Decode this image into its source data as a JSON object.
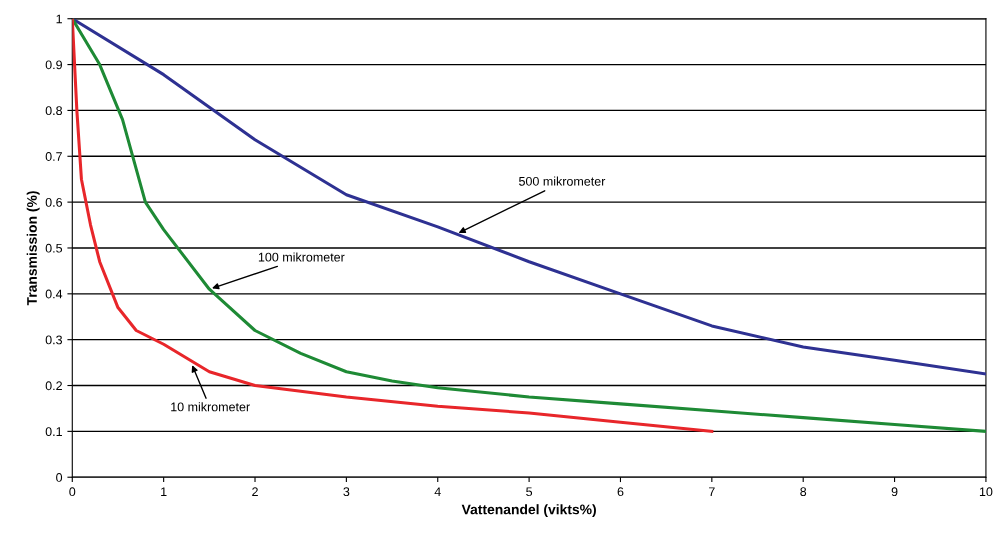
{
  "chart_data": {
    "type": "line",
    "xlabel": "Vattenandel (vikts%)",
    "ylabel": "Transmission (%)",
    "xlim": [
      0,
      10
    ],
    "ylim": [
      0,
      1
    ],
    "xticks": [
      0,
      1,
      2,
      3,
      4,
      5,
      6,
      7,
      8,
      9,
      10
    ],
    "yticks": [
      0,
      0.1,
      0.2,
      0.3,
      0.4,
      0.5,
      0.6,
      0.7,
      0.8,
      0.9,
      1
    ],
    "grid": "y",
    "marker": "none",
    "line_style": "solid",
    "series": [
      {
        "color": "#2e3192",
        "x": [
          0,
          1,
          2,
          3,
          4,
          5,
          6,
          7,
          8,
          9,
          10
        ],
        "values": [
          1,
          0.878,
          0.736,
          0.616,
          0.546,
          0.47,
          0.4,
          0.33,
          0.284,
          0.255,
          0.225
        ]
      },
      {
        "color": "#1e8a35",
        "x": [
          0,
          0.3,
          0.55,
          0.8,
          1,
          1.5,
          2,
          2.5,
          3,
          3.5,
          4,
          5,
          6,
          7,
          8,
          9,
          10
        ],
        "values": [
          1,
          0.9,
          0.78,
          0.6,
          0.54,
          0.41,
          0.32,
          0.27,
          0.23,
          0.21,
          0.195,
          0.175,
          0.16,
          0.145,
          0.13,
          0.115,
          0.1
        ]
      },
      {
        "color": "#e8262a",
        "x": [
          0,
          0.05,
          0.1,
          0.2,
          0.3,
          0.5,
          0.7,
          1,
          1.5,
          2,
          3,
          4,
          5,
          6,
          7
        ],
        "values": [
          1,
          0.8,
          0.65,
          0.55,
          0.47,
          0.37,
          0.32,
          0.29,
          0.23,
          0.2,
          0.175,
          0.155,
          0.14,
          0.12,
          0.1
        ]
      }
    ],
    "annotations": [
      {
        "text": "500 mikrometer",
        "x": 4.2,
        "y": 0.53
      },
      {
        "text": "100 mikrometer",
        "x": 1.5,
        "y": 0.41
      },
      {
        "text": "10 mikrometer",
        "x": 1.3,
        "y": 0.25
      }
    ]
  }
}
